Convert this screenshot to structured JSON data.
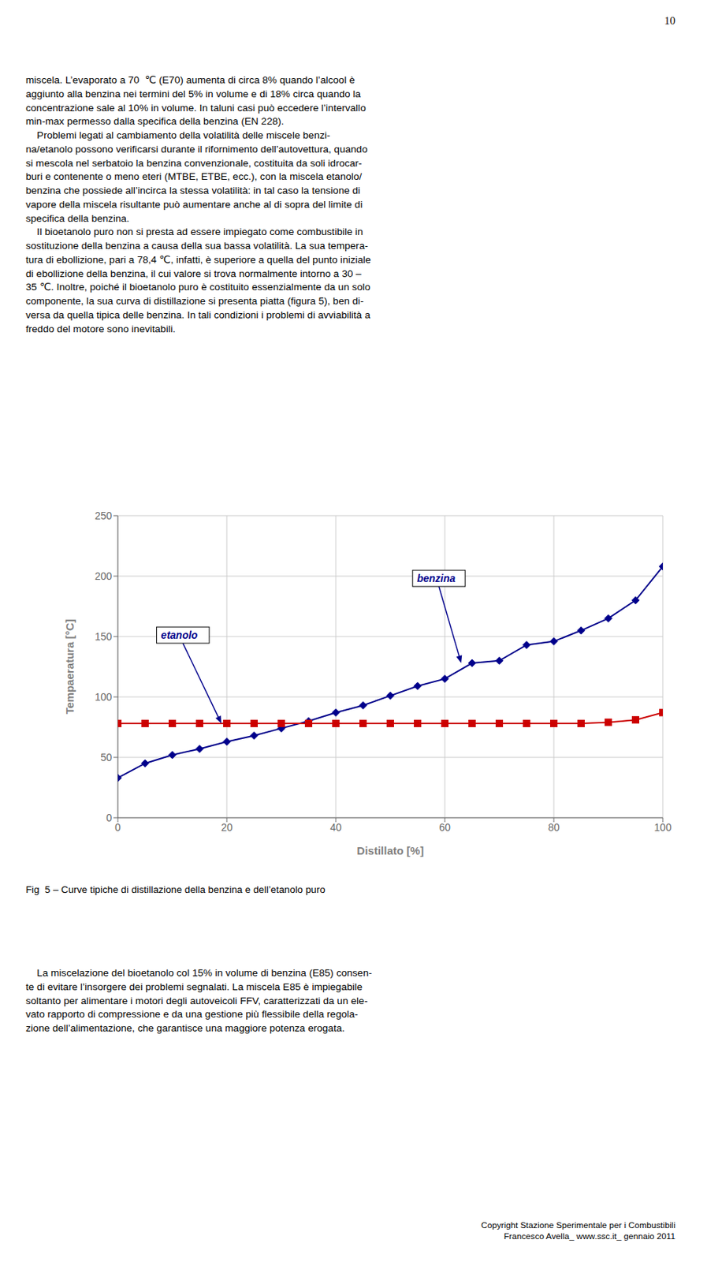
{
  "page_number": "10",
  "text_above": "miscela. L’evaporato a 70  ℃ (E70) aumenta di circa 8% quando l’alcool è\naggiunto alla benzina nei termini del 5% in volume e di 18% circa quando la\nconcentrazione sale al 10% in volume. In taluni casi può eccedere l’intervallo\nmin-max permesso dalla specifica della benzina (EN 228).\n    Problemi legati al cambiamento della volatilità delle miscele benzi-\nna/etanolo possono verificarsi durante il rifornimento dell’autovettura, quando\nsi mescola nel serbatoio la benzina convenzionale, costituita da soli idrocar-\nburi e contenente o meno eteri (MTBE, ETBE, ecc.), con la miscela etanolo/\nbenzina che possiede all’incirca la stessa volatilità: in tal caso la tensione di\nvapore della miscela risultante può aumentare anche al di sopra del limite di\nspecifica della benzina.\n    Il bioetanolo puro non si presta ad essere impiegato come combustibile in\nsostituzione della benzina a causa della sua bassa volatilità. La sua tempera-\ntura di ebollizione, pari a 78,4 ℃, infatti, è superiore a quella del punto iniziale\ndi ebollizione della benzina, il cui valore si trova normalmente intorno a 30 –\n35 ℃. Inoltre, poiché il bioetanolo puro è costituito essenzialmente da un solo\ncomponente, la sua curva di distillazione si presenta piatta (figura 5), ben di-\nversa da quella tipica delle benzina. In tali condizioni i problemi di avviabilità a\nfreddo del motore sono inevitabili.",
  "text_below": "    La miscelazione del bioetanolo col 15% in volume di benzina (E85) consen-\nte di evitare l’insorgere dei problemi segnalati. La miscela E85 è impiegabile\nsoltanto per alimentare i motori degli autoveicoli FFV, caratterizzati da un ele-\nvato rapporto di compressione e da una gestione più flessibile della regola-\nzione dell’alimentazione, che garantisce una maggiore potenza erogata.",
  "footer": "Copyright Stazione Sperimentale per i Combustibili\nFrancesco Avella_ www.ssc.it_ gennaio 2011",
  "chart_data": {
    "type": "line",
    "caption": "Fig  5 – Curve tipiche di distillazione della benzina e dell’etanolo puro",
    "x_label": "Distillato [%]",
    "y_label": "Tempaeratura [°C]",
    "x": [
      0,
      5,
      10,
      15,
      20,
      25,
      30,
      35,
      40,
      45,
      50,
      55,
      60,
      65,
      70,
      75,
      80,
      85,
      90,
      95,
      100
    ],
    "series": [
      {
        "name": "benzina",
        "color": "#00008B",
        "marker": "diamond",
        "values": [
          33,
          45,
          52,
          57,
          63,
          68,
          74,
          80,
          87,
          93,
          101,
          109,
          115,
          128,
          130,
          143,
          146,
          155,
          165,
          180,
          208
        ]
      },
      {
        "name": "etanolo",
        "color": "#CC0000",
        "marker": "square",
        "values": [
          78,
          78,
          78,
          78,
          78,
          78,
          78,
          78,
          78,
          78,
          78,
          78,
          78,
          78,
          78,
          78,
          78,
          78,
          79,
          81,
          87
        ]
      }
    ],
    "xlim": [
      0,
      100
    ],
    "ylim": [
      0,
      250
    ],
    "xticks": [
      0,
      20,
      40,
      60,
      80,
      100
    ],
    "yticks": [
      0,
      50,
      100,
      150,
      200,
      250
    ],
    "grid": true,
    "annotations": [
      {
        "text": "benzina",
        "x": 63,
        "y": 128,
        "color": "#00008B"
      },
      {
        "text": "etanolo",
        "x": 19,
        "y": 78,
        "color": "#00008B"
      }
    ]
  }
}
